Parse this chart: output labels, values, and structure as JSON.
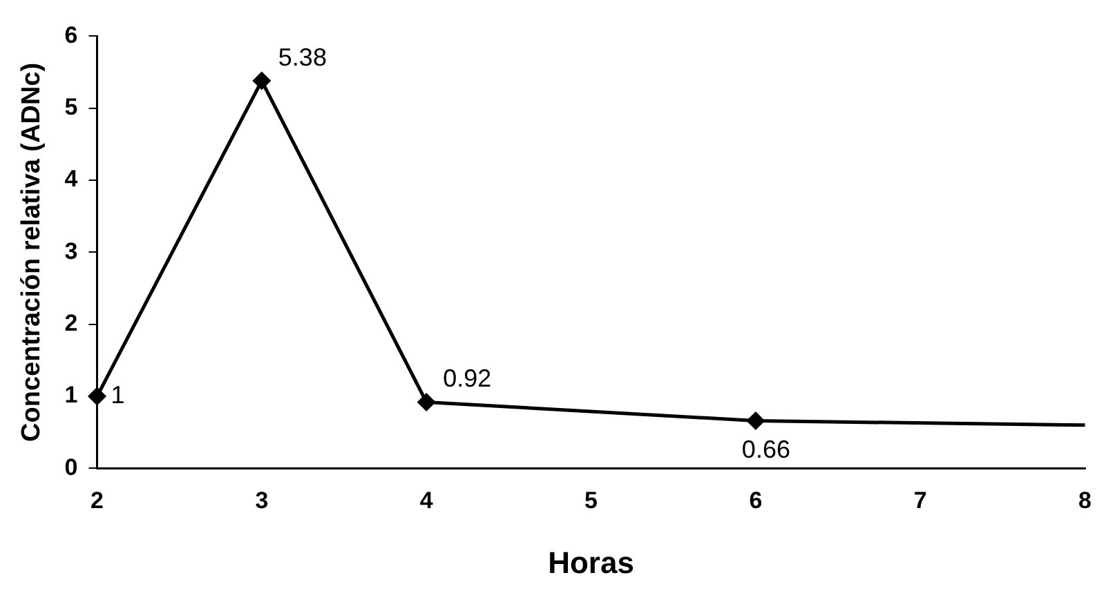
{
  "chart_data": {
    "type": "line",
    "xlabel": "Horas",
    "ylabel": "Concentración relativa (ADNc)",
    "x": [
      2,
      3,
      4,
      6,
      8
    ],
    "series": [
      {
        "color": "#000000",
        "values": [
          1,
          5.38,
          0.92,
          0.66,
          0.6
        ],
        "value_labels": [
          "1",
          "5.38",
          "0.92",
          "0.66",
          null
        ]
      }
    ],
    "xlim": [
      2,
      8
    ],
    "xticks": [
      2,
      3,
      4,
      5,
      6,
      7,
      8
    ],
    "ylim": [
      0,
      6
    ],
    "yticks": [
      0,
      1,
      2,
      3,
      4,
      5,
      6
    ],
    "grid": false,
    "legend": false,
    "marker": "diamond",
    "line_style": "solid"
  }
}
